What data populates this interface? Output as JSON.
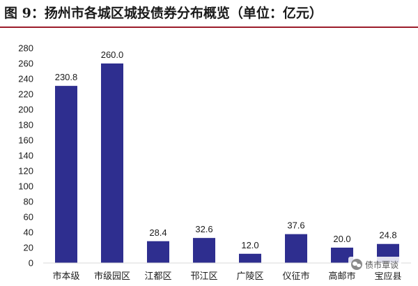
{
  "figure": {
    "title": "图 9：扬州市各城区城投债券分布概览（单位：亿元）",
    "watermark": "债市覃谈"
  },
  "colors": {
    "bar": "#2e2e8f",
    "title_rule": "#9b1c2a",
    "grid": "#d9d9d9"
  },
  "chart_data": {
    "type": "bar",
    "title": "",
    "xlabel": "",
    "ylabel": "",
    "categories": [
      "市本级",
      "市级园区",
      "江都区",
      "邗江区",
      "广陵区",
      "仪征市",
      "高邮市",
      "宝应县"
    ],
    "values": [
      230.8,
      260.0,
      28.4,
      32.6,
      12.0,
      37.6,
      20.0,
      24.8
    ],
    "value_labels": [
      "230.8",
      "260.0",
      "28.4",
      "32.6",
      "12.0",
      "37.6",
      "20.0",
      "24.8"
    ],
    "ylim": [
      0,
      280
    ],
    "yticks": [
      0,
      20,
      40,
      60,
      80,
      100,
      120,
      140,
      160,
      180,
      200,
      220,
      240,
      260,
      280
    ],
    "grid": false,
    "legend": "none"
  }
}
